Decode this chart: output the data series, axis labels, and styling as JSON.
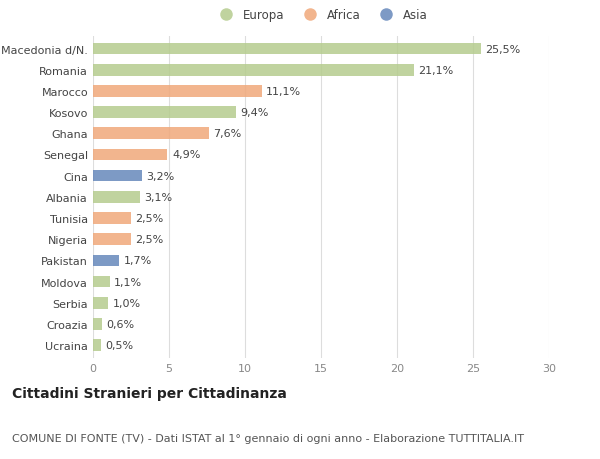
{
  "categories": [
    "Macedonia d/N.",
    "Romania",
    "Marocco",
    "Kosovo",
    "Ghana",
    "Senegal",
    "Cina",
    "Albania",
    "Tunisia",
    "Nigeria",
    "Pakistan",
    "Moldova",
    "Serbia",
    "Croazia",
    "Ucraina"
  ],
  "values": [
    25.5,
    21.1,
    11.1,
    9.4,
    7.6,
    4.9,
    3.2,
    3.1,
    2.5,
    2.5,
    1.7,
    1.1,
    1.0,
    0.6,
    0.5
  ],
  "labels": [
    "25,5%",
    "21,1%",
    "11,1%",
    "9,4%",
    "7,6%",
    "4,9%",
    "3,2%",
    "3,1%",
    "2,5%",
    "2,5%",
    "1,7%",
    "1,1%",
    "1,0%",
    "0,6%",
    "0,5%"
  ],
  "continents": [
    "Europa",
    "Europa",
    "Africa",
    "Europa",
    "Africa",
    "Africa",
    "Asia",
    "Europa",
    "Africa",
    "Africa",
    "Asia",
    "Europa",
    "Europa",
    "Europa",
    "Europa"
  ],
  "colors": {
    "Europa": "#b5cc8e",
    "Africa": "#f0a87a",
    "Asia": "#6688bb"
  },
  "legend_labels": [
    "Europa",
    "Africa",
    "Asia"
  ],
  "xlim": [
    0,
    30
  ],
  "xticks": [
    0,
    5,
    10,
    15,
    20,
    25,
    30
  ],
  "title": "Cittadini Stranieri per Cittadinanza",
  "subtitle": "COMUNE DI FONTE (TV) - Dati ISTAT al 1° gennaio di ogni anno - Elaborazione TUTTITALIA.IT",
  "bg_color": "#ffffff",
  "grid_color": "#dddddd",
  "bar_height": 0.55,
  "label_fontsize": 8.0,
  "tick_fontsize": 8.0,
  "title_fontsize": 10,
  "subtitle_fontsize": 8
}
